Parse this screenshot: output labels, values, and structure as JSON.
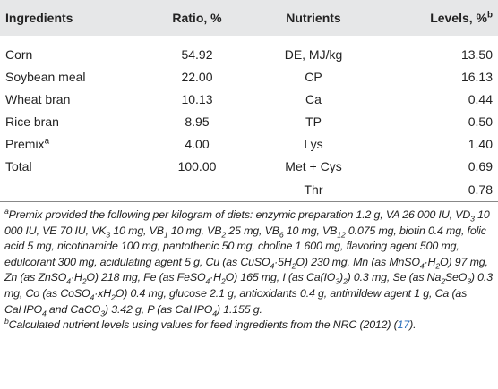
{
  "table": {
    "header": [
      "Ingredients",
      "Ratio, %",
      "Nutrients",
      [
        "Levels, %",
        {
          "sup": "b"
        }
      ]
    ],
    "rows": [
      [
        "Corn",
        "54.92",
        "DE, MJ/kg",
        "13.50"
      ],
      [
        "Soybean meal",
        "22.00",
        "CP",
        "16.13"
      ],
      [
        "Wheat bran",
        "10.13",
        "Ca",
        "0.44"
      ],
      [
        "Rice bran",
        "8.95",
        "TP",
        "0.50"
      ],
      [
        [
          "Premix",
          {
            "sup": "a"
          }
        ],
        "4.00",
        "Lys",
        "1.40"
      ],
      [
        "Total",
        "100.00",
        "Met + Cys",
        "0.69"
      ],
      [
        null,
        null,
        "Thr",
        "0.78"
      ]
    ]
  },
  "footnotes": [
    [
      {
        "sup": "a"
      },
      "Premix provided the following per kilogram of diets: enzymic preparation 1.2 g, VA 26 000 IU, VD",
      {
        "sub": "3"
      },
      " 10 000 IU, VE 70 IU, VK",
      {
        "sub": "3"
      },
      " 10 mg, VB",
      {
        "sub": "1"
      },
      " 10 mg, VB",
      {
        "sub": "2"
      },
      " 25 mg, VB",
      {
        "sub": "6"
      },
      " 10 mg, VB",
      {
        "sub": "12"
      },
      " 0.075 mg, biotin 0.4 mg, folic acid 5 mg, nicotinamide 100 mg, pantothenic 50 mg, choline 1 600 mg, flavoring agent 500 mg, edulcorant 300 mg, acidulating agent 5 g, Cu (as CuSO",
      {
        "sub": "4"
      },
      "·5H",
      {
        "sub": "2"
      },
      "O) 230 mg, Mn (as MnSO",
      {
        "sub": "4"
      },
      "·H",
      {
        "sub": "2"
      },
      "O) 97 mg, Zn (as ZnSO",
      {
        "sub": "4"
      },
      "·H",
      {
        "sub": "2"
      },
      "O) 218 mg, Fe (as FeSO",
      {
        "sub": "4"
      },
      "·H",
      {
        "sub": "2"
      },
      "O) 165 mg, I (as Ca(IO",
      {
        "sub": "3"
      },
      ")",
      {
        "sub": "2"
      },
      ") 0.3 mg, Se (as Na",
      {
        "sub": "2"
      },
      "SeO",
      {
        "sub": "3"
      },
      ") 0.3 mg, Co (as CoSO",
      {
        "sub": "4"
      },
      "·xH",
      {
        "sub": "2"
      },
      "O) 0.4 mg, glucose 2.1 g, antioxidants 0.4 g, antimildew agent 1 g, Ca (as CaHPO",
      {
        "sub": "4"
      },
      " and CaCO",
      {
        "sub": "3"
      },
      ") 3.42 g, P (as CaHPO",
      {
        "sub": "4"
      },
      ") 1.155 g."
    ],
    [
      {
        "sup": "b"
      },
      "Calculated nutrient levels using values for feed ingredients from the NRC (2012) (",
      {
        "link": "17"
      },
      ")."
    ]
  ]
}
